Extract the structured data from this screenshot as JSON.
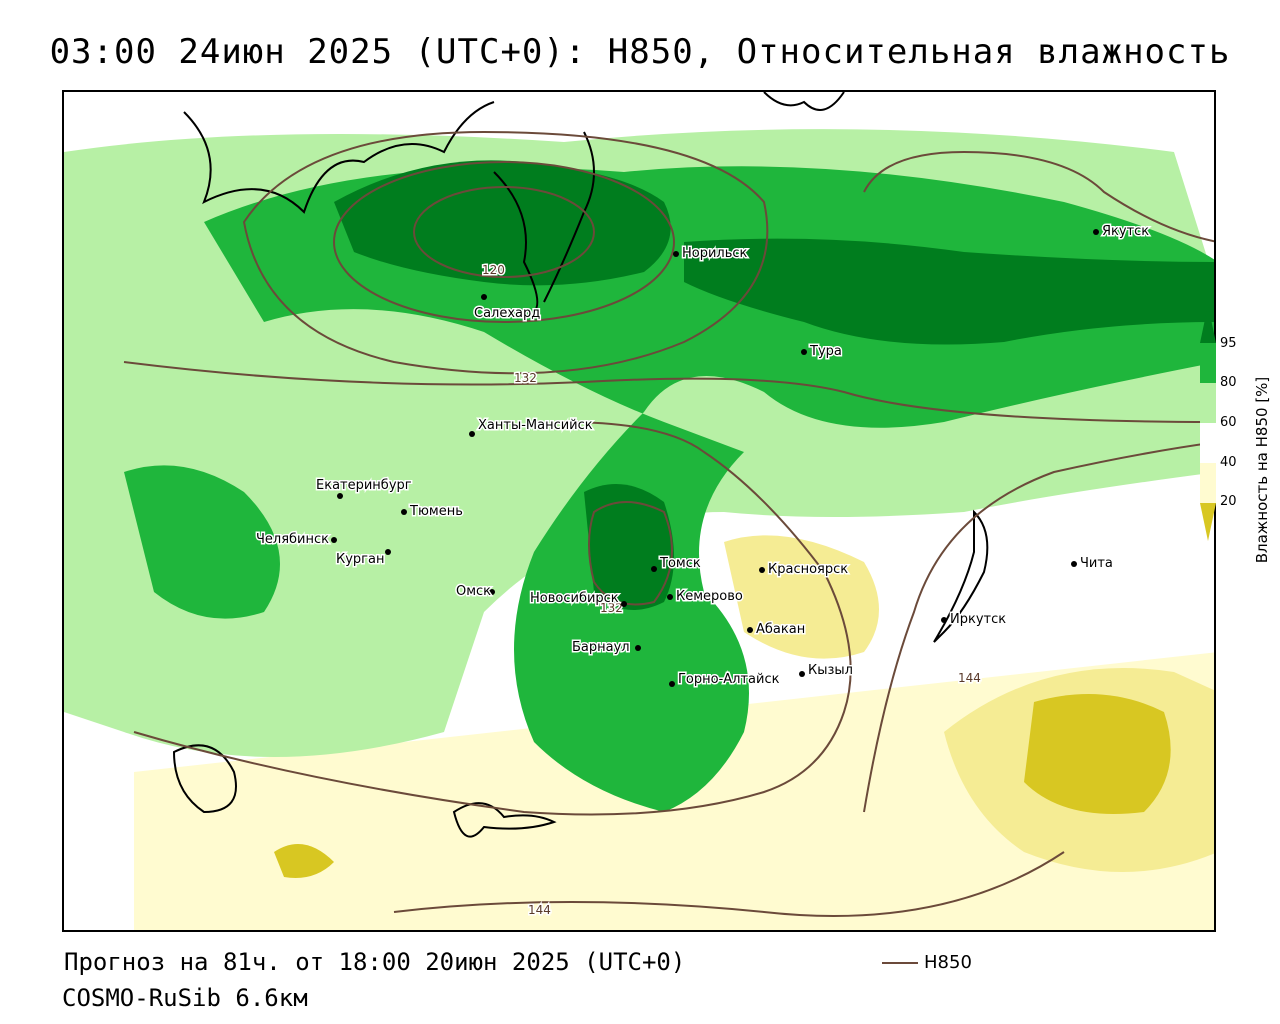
{
  "header": {
    "title": "03:00 24июн 2025 (UTC+0): H850, Относительная влажность"
  },
  "map": {
    "cities": [
      {
        "name": "Якутск"
      },
      {
        "name": "Норильск"
      },
      {
        "name": "Салехард"
      },
      {
        "name": "Тура"
      },
      {
        "name": "Ханты-Мансийск"
      },
      {
        "name": "Екатеринбург"
      },
      {
        "name": "Тюмень"
      },
      {
        "name": "Челябинск"
      },
      {
        "name": "Курган"
      },
      {
        "name": "Омск"
      },
      {
        "name": "Новосибирск"
      },
      {
        "name": "Томск"
      },
      {
        "name": "Кемерово"
      },
      {
        "name": "Красноярск"
      },
      {
        "name": "Абакан"
      },
      {
        "name": "Барнаул"
      },
      {
        "name": "Горно-Алтайск"
      },
      {
        "name": "Кызыл"
      },
      {
        "name": "Иркутск"
      },
      {
        "name": "Чита"
      }
    ],
    "isoline_labels": [
      "120",
      "132",
      "132",
      "144",
      "144"
    ],
    "colors": {
      "humid_95": "#007d1e",
      "humid_80": "#1fb63c",
      "humid_60": "#b7f0a5",
      "dry_40": "#fffbd0",
      "dry_20": "#f5ec94",
      "dry_0": "#d8c722",
      "isoline": "#6b4a3a"
    }
  },
  "legend": {
    "ticks": [
      "95",
      "80",
      "60",
      "40",
      "20"
    ],
    "title": "Влажность на H850 [%]"
  },
  "footer": {
    "forecast": "Прогноз на 81ч. от 18:00 20июн 2025 (UTC+0)",
    "model": "COSMO-RuSib 6.6км",
    "isoline_legend": "H850"
  }
}
